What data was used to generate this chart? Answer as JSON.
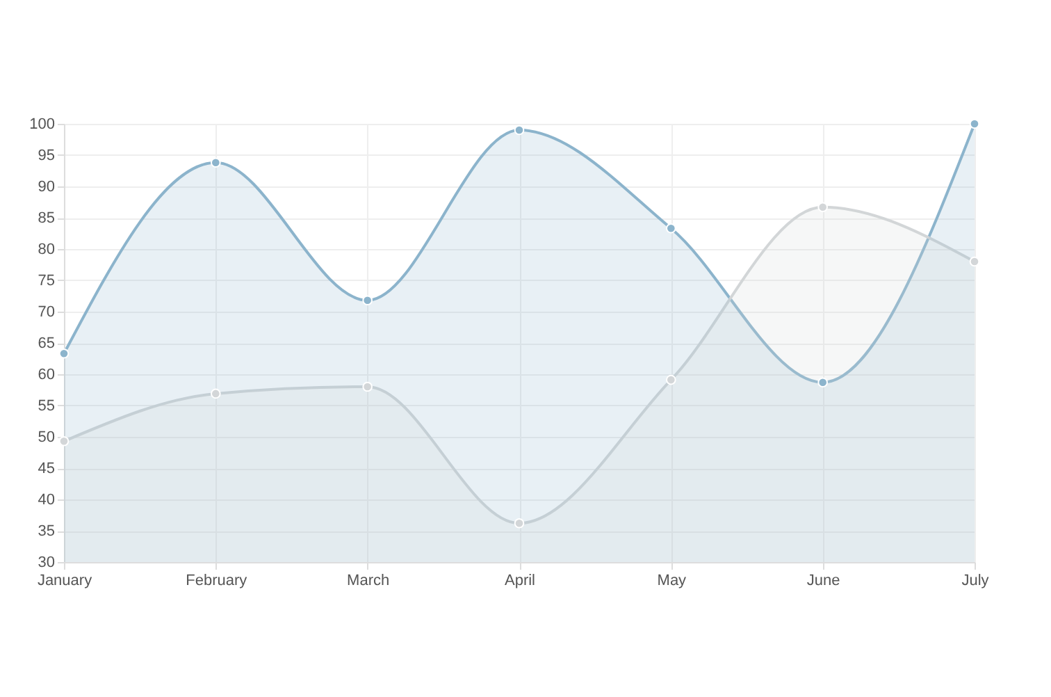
{
  "chart_data": {
    "type": "area",
    "categories": [
      "January",
      "February",
      "March",
      "April",
      "May",
      "June",
      "July"
    ],
    "series": [
      {
        "color": "#8cb4cc",
        "values": [
          63.3,
          93.8,
          71.8,
          99,
          83.3,
          58.7,
          100
        ]
      },
      {
        "color": "#d3d6d8",
        "values": [
          49.3,
          56.9,
          58,
          36.2,
          59.1,
          86.7,
          78
        ]
      }
    ],
    "ylim": [
      30,
      100
    ],
    "yticks": [
      30,
      35,
      40,
      45,
      50,
      55,
      60,
      65,
      70,
      75,
      80,
      85,
      90,
      95,
      100
    ],
    "grid": true,
    "legend": false,
    "marker": "circle",
    "line_style": "solid"
  }
}
